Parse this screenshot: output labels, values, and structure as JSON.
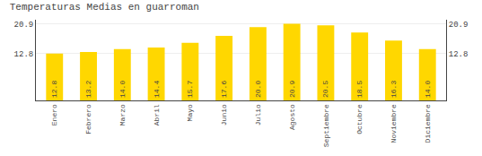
{
  "chart_data": {
    "type": "bar",
    "title": "Temperaturas Medias en guarroman",
    "categories": [
      "Enero",
      "Febrero",
      "Marzo",
      "Abril",
      "Mayo",
      "Junio",
      "Julio",
      "Agosto",
      "Septiembre",
      "Octubre",
      "Noviembre",
      "Diciembre"
    ],
    "values": [
      12.8,
      13.2,
      14.0,
      14.4,
      15.7,
      17.6,
      20.0,
      20.9,
      20.5,
      18.5,
      16.3,
      14.0
    ],
    "value_labels": [
      "12.8",
      "13.2",
      "14.0",
      "14.4",
      "15.7",
      "17.6",
      "20.0",
      "20.9",
      "20.5",
      "18.5",
      "16.3",
      "14.0"
    ],
    "data_labels": true,
    "color": "#FFD700",
    "ylim": [
      0,
      22.0
    ],
    "yticks": [
      12.8,
      20.9
    ],
    "grid": true
  }
}
